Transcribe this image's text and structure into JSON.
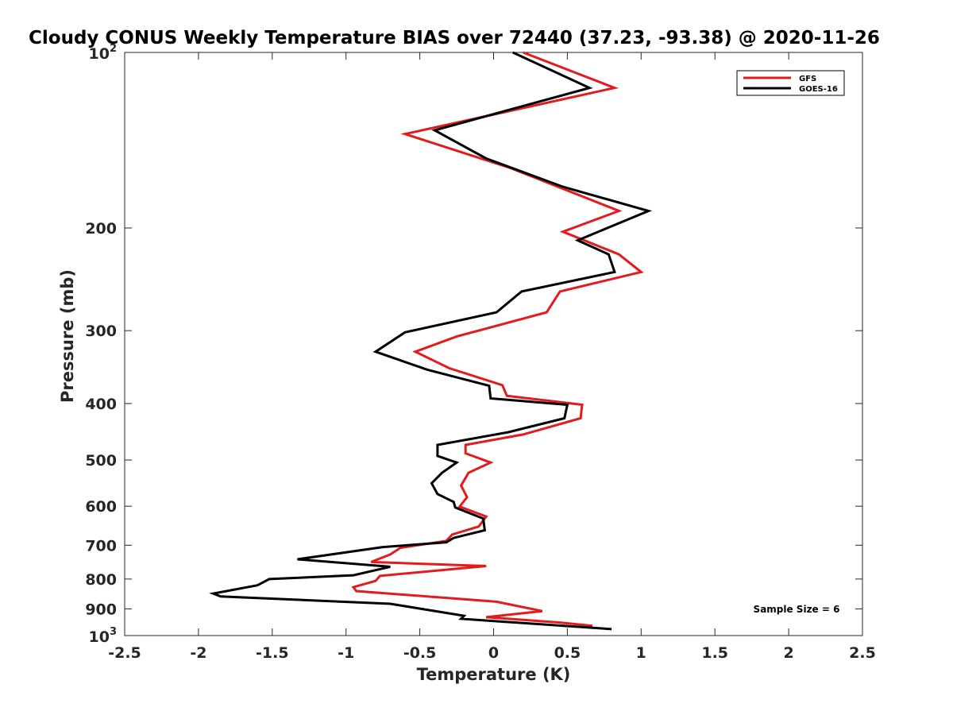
{
  "chart_data": {
    "type": "line",
    "title": "Cloudy CONUS Weekly Temperature BIAS over 72440 (37.23, -93.38) @ 2020-11-26",
    "xlabel": "Temperature (K)",
    "ylabel": "Pressure (mb)",
    "xlim": [
      -2.5,
      2.5
    ],
    "ylim": [
      100,
      1000
    ],
    "y_scale": "log",
    "y_reversed": true,
    "grid": false,
    "legend_position": "top-right",
    "x_ticks": [
      -2.5,
      -2,
      -1.5,
      -1,
      -0.5,
      0,
      0.5,
      1,
      1.5,
      2,
      2.5
    ],
    "x_tick_labels": [
      "-2.5",
      "-2",
      "-1.5",
      "-1",
      "-0.5",
      "0",
      "0.5",
      "1",
      "1.5",
      "2",
      "2.5"
    ],
    "y_ticks": [
      200,
      300,
      400,
      500,
      600,
      700,
      800,
      900
    ],
    "y_tick_labels": [
      "200",
      "300",
      "400",
      "500",
      "600",
      "700",
      "800",
      "900"
    ],
    "y_pow_ticks": [
      {
        "value": 100,
        "base": "10",
        "exp": "2"
      },
      {
        "value": 1000,
        "base": "10",
        "exp": "3"
      }
    ],
    "annotation": "Sample Size = 6",
    "series": [
      {
        "name": "GFS",
        "color": "#e41a1c",
        "points": [
          [
            0.2,
            100
          ],
          [
            0.82,
            115
          ],
          [
            -0.6,
            138
          ],
          [
            0.12,
            158
          ],
          [
            0.85,
            187
          ],
          [
            0.47,
            203
          ],
          [
            0.85,
            222
          ],
          [
            1.0,
            238
          ],
          [
            0.45,
            257
          ],
          [
            0.36,
            279
          ],
          [
            -0.25,
            307
          ],
          [
            -0.53,
            326
          ],
          [
            -0.3,
            348
          ],
          [
            0.06,
            372
          ],
          [
            0.09,
            388
          ],
          [
            0.6,
            402
          ],
          [
            0.59,
            424
          ],
          [
            0.2,
            452
          ],
          [
            -0.19,
            471
          ],
          [
            -0.19,
            487
          ],
          [
            -0.02,
            505
          ],
          [
            -0.17,
            526
          ],
          [
            -0.22,
            553
          ],
          [
            -0.18,
            579
          ],
          [
            -0.23,
            601
          ],
          [
            -0.05,
            625
          ],
          [
            -0.1,
            650
          ],
          [
            -0.28,
            671
          ],
          [
            -0.32,
            688
          ],
          [
            -0.63,
            707
          ],
          [
            -0.7,
            726
          ],
          [
            -0.83,
            748
          ],
          [
            -0.05,
            760
          ],
          [
            -0.3,
            770
          ],
          [
            -0.77,
            790
          ],
          [
            -0.8,
            806
          ],
          [
            -0.95,
            826
          ],
          [
            -0.93,
            839
          ],
          [
            0.02,
            875
          ],
          [
            0.33,
            908
          ],
          [
            -0.05,
            930
          ],
          [
            0.45,
            950
          ],
          [
            0.67,
            962
          ]
        ]
      },
      {
        "name": "GOES-16",
        "color": "#000000",
        "points": [
          [
            0.13,
            100
          ],
          [
            0.65,
            115
          ],
          [
            -0.4,
            136
          ],
          [
            -0.05,
            152
          ],
          [
            0.47,
            170
          ],
          [
            1.05,
            187
          ],
          [
            0.57,
            210
          ],
          [
            0.78,
            222
          ],
          [
            0.82,
            238
          ],
          [
            0.19,
            257
          ],
          [
            0.02,
            279
          ],
          [
            -0.6,
            302
          ],
          [
            -0.8,
            326
          ],
          [
            -0.45,
            350
          ],
          [
            -0.03,
            373
          ],
          [
            -0.02,
            392
          ],
          [
            0.5,
            402
          ],
          [
            0.48,
            424
          ],
          [
            0.1,
            448
          ],
          [
            -0.38,
            471
          ],
          [
            -0.38,
            492
          ],
          [
            -0.25,
            505
          ],
          [
            -0.35,
            526
          ],
          [
            -0.42,
            548
          ],
          [
            -0.38,
            572
          ],
          [
            -0.27,
            590
          ],
          [
            -0.26,
            603
          ],
          [
            -0.07,
            630
          ],
          [
            -0.06,
            660
          ],
          [
            -0.27,
            680
          ],
          [
            -0.32,
            692
          ],
          [
            -0.75,
            705
          ],
          [
            -1.33,
            740
          ],
          [
            -0.7,
            762
          ],
          [
            -0.95,
            788
          ],
          [
            -1.52,
            800
          ],
          [
            -1.6,
            820
          ],
          [
            -1.9,
            847
          ],
          [
            -1.85,
            857
          ],
          [
            -0.7,
            882
          ],
          [
            -0.2,
            925
          ],
          [
            -0.22,
            936
          ],
          [
            0.8,
            975
          ]
        ]
      }
    ]
  }
}
